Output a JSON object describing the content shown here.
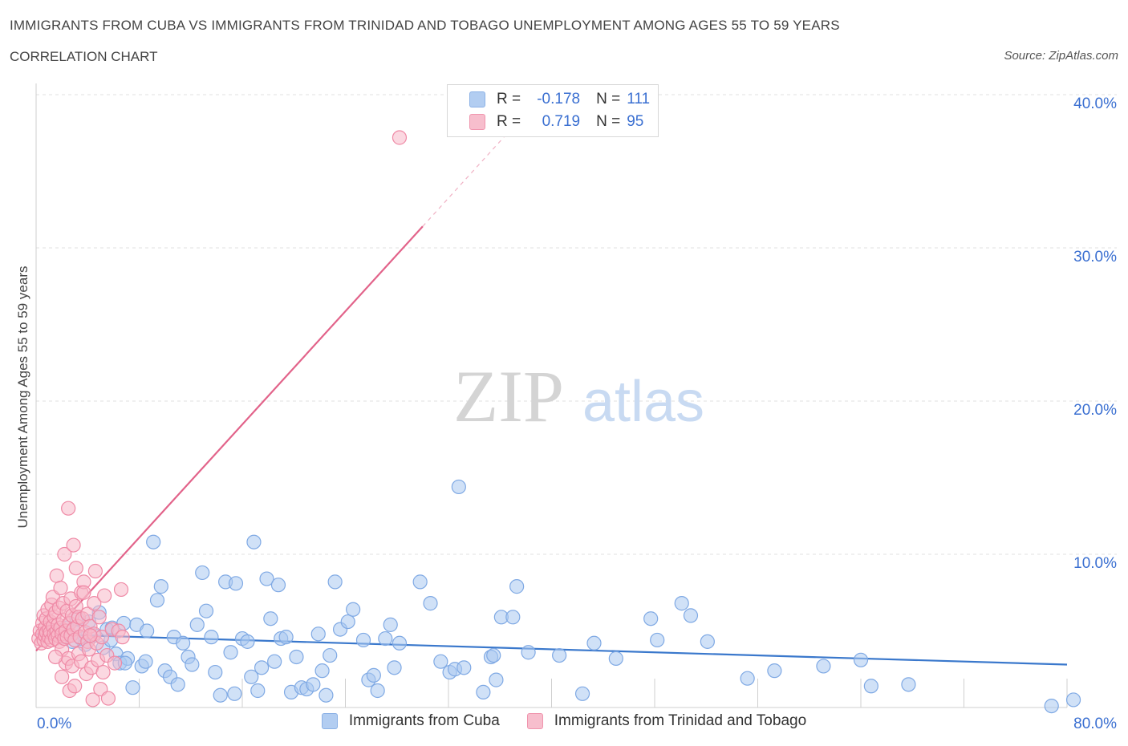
{
  "header": {
    "title": "IMMIGRANTS FROM CUBA VS IMMIGRANTS FROM TRINIDAD AND TOBAGO UNEMPLOYMENT AMONG AGES 55 TO 59 YEARS",
    "subtitle": "CORRELATION CHART",
    "source": "Source: ZipAtlas.com"
  },
  "legend": {
    "cuba": {
      "r_label": "R =",
      "r_value": "-0.178",
      "n_label": "N =",
      "n_value": "111"
    },
    "trinidad": {
      "r_label": "R =",
      "r_value": "0.719",
      "n_label": "N =",
      "n_value": "95"
    }
  },
  "bottom_legend": {
    "cuba": "Immigrants from Cuba",
    "trinidad": "Immigrants from Trinidad and Tobago"
  },
  "watermark": {
    "zip": "ZIP",
    "atlas": "atlas"
  },
  "colors": {
    "cuba_fill": "#aac8f0",
    "cuba_stroke": "#7fa9e4",
    "cuba_line": "#3a78cc",
    "trinidad_fill": "#f7b8c8",
    "trinidad_stroke": "#ef8aa6",
    "trinidad_line": "#e2638a",
    "axis_label": "#3a6fd1",
    "grid": "#e0e0e0"
  },
  "chart_data": {
    "type": "scatter",
    "title": "IMMIGRANTS FROM CUBA VS IMMIGRANTS FROM TRINIDAD AND TOBAGO UNEMPLOYMENT AMONG AGES 55 TO 59 YEARS",
    "xlabel": "",
    "ylabel": "Unemployment Among Ages 55 to 59 years",
    "xlim": [
      0,
      80
    ],
    "ylim": [
      0,
      40
    ],
    "x_tick_labels": [
      "0.0%",
      "80.0%"
    ],
    "y_ticks": [
      10,
      20,
      30,
      40
    ],
    "y_tick_labels": [
      "10.0%",
      "20.0%",
      "30.0%",
      "40.0%"
    ],
    "grid": true,
    "series": [
      {
        "name": "Immigrants from Cuba",
        "r": -0.178,
        "n": 111,
        "trend": {
          "x": [
            0,
            80
          ],
          "y": [
            4.8,
            2.8
          ],
          "dashed_extension": false
        },
        "points": [
          [
            1.2,
            5.0
          ],
          [
            1.8,
            4.8
          ],
          [
            2.1,
            4.6
          ],
          [
            2.4,
            5.2
          ],
          [
            2.8,
            4.3
          ],
          [
            3.0,
            4.9
          ],
          [
            3.2,
            5.8
          ],
          [
            3.5,
            4.5
          ],
          [
            3.8,
            4.1
          ],
          [
            4.1,
            5.6
          ],
          [
            4.5,
            4.7
          ],
          [
            4.9,
            6.2
          ],
          [
            5.2,
            3.9
          ],
          [
            5.5,
            5.1
          ],
          [
            5.8,
            4.4
          ],
          [
            6.2,
            3.5
          ],
          [
            6.5,
            2.9
          ],
          [
            6.8,
            5.5
          ],
          [
            7.1,
            3.2
          ],
          [
            7.5,
            1.3
          ],
          [
            7.8,
            5.4
          ],
          [
            8.2,
            2.7
          ],
          [
            8.5,
            3.0
          ],
          [
            8.6,
            5.0
          ],
          [
            9.1,
            10.8
          ],
          [
            9.4,
            7.0
          ],
          [
            9.7,
            7.9
          ],
          [
            10.0,
            2.4
          ],
          [
            10.4,
            2.0
          ],
          [
            10.7,
            4.6
          ],
          [
            11.0,
            1.5
          ],
          [
            11.4,
            4.2
          ],
          [
            11.8,
            3.3
          ],
          [
            12.1,
            2.8
          ],
          [
            12.5,
            5.4
          ],
          [
            12.9,
            8.8
          ],
          [
            13.2,
            6.3
          ],
          [
            13.6,
            4.6
          ],
          [
            13.9,
            2.3
          ],
          [
            14.3,
            0.8
          ],
          [
            14.7,
            8.2
          ],
          [
            15.1,
            3.6
          ],
          [
            15.4,
            0.9
          ],
          [
            15.5,
            8.1
          ],
          [
            16.0,
            4.5
          ],
          [
            16.4,
            4.3
          ],
          [
            16.7,
            2.0
          ],
          [
            16.9,
            10.8
          ],
          [
            17.2,
            1.1
          ],
          [
            17.5,
            2.6
          ],
          [
            17.9,
            8.4
          ],
          [
            18.2,
            5.8
          ],
          [
            18.5,
            3.0
          ],
          [
            18.8,
            8.0
          ],
          [
            19.0,
            4.5
          ],
          [
            19.4,
            4.6
          ],
          [
            19.8,
            1.0
          ],
          [
            20.2,
            3.3
          ],
          [
            20.6,
            1.3
          ],
          [
            21.0,
            1.2
          ],
          [
            21.5,
            1.5
          ],
          [
            21.9,
            4.8
          ],
          [
            22.2,
            2.4
          ],
          [
            22.5,
            0.8
          ],
          [
            22.8,
            3.4
          ],
          [
            23.2,
            8.2
          ],
          [
            23.6,
            5.1
          ],
          [
            24.2,
            5.6
          ],
          [
            24.6,
            6.4
          ],
          [
            25.4,
            4.4
          ],
          [
            25.8,
            1.8
          ],
          [
            26.2,
            2.1
          ],
          [
            26.5,
            1.1
          ],
          [
            27.1,
            4.5
          ],
          [
            27.5,
            5.4
          ],
          [
            27.8,
            2.6
          ],
          [
            28.2,
            4.2
          ],
          [
            29.8,
            8.2
          ],
          [
            30.6,
            6.8
          ],
          [
            31.4,
            3.0
          ],
          [
            32.1,
            2.3
          ],
          [
            32.5,
            2.5
          ],
          [
            32.8,
            14.4
          ],
          [
            33.2,
            2.6
          ],
          [
            34.7,
            1.0
          ],
          [
            35.3,
            3.3
          ],
          [
            35.5,
            3.4
          ],
          [
            35.7,
            1.8
          ],
          [
            36.1,
            5.9
          ],
          [
            37.0,
            5.9
          ],
          [
            37.3,
            7.9
          ],
          [
            38.2,
            3.6
          ],
          [
            40.6,
            3.4
          ],
          [
            42.4,
            0.9
          ],
          [
            43.3,
            4.2
          ],
          [
            45.0,
            3.2
          ],
          [
            47.7,
            5.8
          ],
          [
            48.2,
            4.4
          ],
          [
            50.1,
            6.8
          ],
          [
            50.8,
            6.0
          ],
          [
            52.1,
            4.3
          ],
          [
            55.2,
            1.9
          ],
          [
            57.3,
            2.4
          ],
          [
            61.1,
            2.7
          ],
          [
            64.0,
            3.1
          ],
          [
            64.8,
            1.4
          ],
          [
            67.7,
            1.5
          ],
          [
            78.8,
            0.1
          ],
          [
            80.5,
            0.5
          ],
          [
            5.9,
            5.2
          ],
          [
            6.9,
            2.9
          ]
        ]
      },
      {
        "name": "Immigrants from Trinidad and Tobago",
        "r": 0.719,
        "n": 95,
        "trend": {
          "x": [
            0,
            30
          ],
          "y": [
            3.7,
            31.4
          ],
          "dashed_extension": {
            "x": [
              30,
              38
            ],
            "y": [
              31.4,
              38.8
            ]
          }
        },
        "points": [
          [
            0.2,
            4.5
          ],
          [
            0.3,
            5.0
          ],
          [
            0.4,
            4.2
          ],
          [
            0.5,
            5.5
          ],
          [
            0.5,
            4.8
          ],
          [
            0.6,
            6.0
          ],
          [
            0.6,
            4.4
          ],
          [
            0.7,
            5.2
          ],
          [
            0.7,
            4.7
          ],
          [
            0.8,
            5.8
          ],
          [
            0.8,
            4.9
          ],
          [
            0.9,
            4.3
          ],
          [
            0.9,
            6.4
          ],
          [
            1.0,
            5.1
          ],
          [
            1.0,
            4.6
          ],
          [
            1.1,
            5.6
          ],
          [
            1.1,
            4.9
          ],
          [
            1.2,
            6.7
          ],
          [
            1.2,
            4.4
          ],
          [
            1.3,
            5.3
          ],
          [
            1.3,
            7.2
          ],
          [
            1.4,
            4.8
          ],
          [
            1.4,
            5.9
          ],
          [
            1.5,
            4.5
          ],
          [
            1.5,
            6.2
          ],
          [
            1.6,
            5.0
          ],
          [
            1.6,
            8.6
          ],
          [
            1.7,
            4.7
          ],
          [
            1.7,
            5.4
          ],
          [
            1.8,
            6.5
          ],
          [
            1.8,
            4.3
          ],
          [
            1.9,
            5.2
          ],
          [
            1.9,
            7.8
          ],
          [
            2.0,
            4.8
          ],
          [
            2.0,
            3.8
          ],
          [
            2.1,
            5.7
          ],
          [
            2.1,
            6.8
          ],
          [
            2.2,
            4.5
          ],
          [
            2.2,
            10.0
          ],
          [
            2.3,
            5.0
          ],
          [
            2.3,
            2.9
          ],
          [
            2.4,
            6.3
          ],
          [
            2.4,
            4.6
          ],
          [
            2.5,
            3.2
          ],
          [
            2.5,
            13.0
          ],
          [
            2.6,
            5.5
          ],
          [
            2.6,
            1.1
          ],
          [
            2.7,
            4.7
          ],
          [
            2.7,
            7.1
          ],
          [
            2.8,
            2.7
          ],
          [
            2.8,
            6.0
          ],
          [
            2.9,
            5.1
          ],
          [
            2.9,
            10.6
          ],
          [
            3.0,
            4.4
          ],
          [
            3.0,
            1.4
          ],
          [
            3.1,
            6.6
          ],
          [
            3.1,
            9.1
          ],
          [
            3.2,
            5.3
          ],
          [
            3.3,
            3.5
          ],
          [
            3.3,
            5.9
          ],
          [
            3.4,
            4.6
          ],
          [
            3.5,
            7.5
          ],
          [
            3.5,
            3.0
          ],
          [
            3.6,
            5.8
          ],
          [
            3.7,
            8.2
          ],
          [
            3.8,
            4.9
          ],
          [
            3.9,
            2.2
          ],
          [
            4.0,
            6.1
          ],
          [
            4.0,
            4.3
          ],
          [
            4.1,
            3.8
          ],
          [
            4.2,
            5.3
          ],
          [
            4.3,
            2.6
          ],
          [
            4.4,
            0.5
          ],
          [
            4.5,
            4.8
          ],
          [
            4.5,
            6.8
          ],
          [
            4.6,
            8.9
          ],
          [
            4.7,
            4.2
          ],
          [
            4.8,
            3.1
          ],
          [
            4.9,
            5.9
          ],
          [
            5.0,
            1.2
          ],
          [
            5.1,
            4.6
          ],
          [
            5.2,
            2.3
          ],
          [
            5.3,
            7.3
          ],
          [
            5.5,
            3.4
          ],
          [
            5.6,
            0.6
          ],
          [
            5.9,
            5.1
          ],
          [
            6.1,
            2.9
          ],
          [
            6.4,
            5.0
          ],
          [
            6.6,
            7.7
          ],
          [
            6.7,
            4.6
          ],
          [
            28.2,
            37.2
          ],
          [
            1.5,
            3.3
          ],
          [
            2.0,
            2.0
          ],
          [
            3.7,
            7.5
          ],
          [
            4.2,
            4.7
          ]
        ]
      }
    ]
  }
}
